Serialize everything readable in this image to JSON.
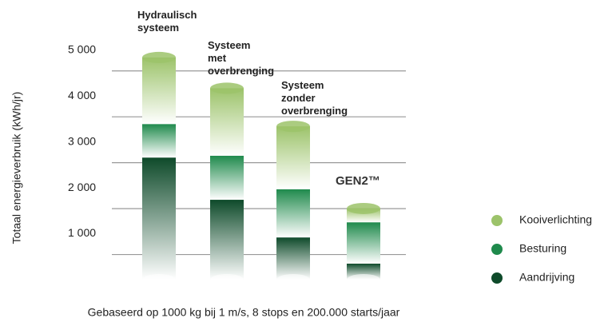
{
  "chart_data": {
    "type": "stacked_bar",
    "y_label": "Totaal energieverbruik (kWh/jr)",
    "caption": "Gebaseerd op 1000 kg bij 1 m/s, 8 stops en 200.000 starts/jaar",
    "categories": [
      "Hydraulisch systeem",
      "Systeem met overbrenging",
      "Systeem zonder overbrenging",
      "GEN2™"
    ],
    "series": [
      {
        "name": "Aandrijving",
        "color": "#0e4a2a",
        "values": [
          2660,
          1740,
          920,
          350
        ]
      },
      {
        "name": "Besturing",
        "color": "#1f8a4c",
        "values": [
          730,
          960,
          1050,
          900
        ]
      },
      {
        "name": "Kooiverlichting",
        "color": "#9cc36a",
        "values": [
          1450,
          1470,
          1370,
          300
        ]
      }
    ],
    "ylim": [
      0,
      5500
    ],
    "yticks": [
      {
        "value": 1000,
        "label": "1 000"
      },
      {
        "value": 2000,
        "label": "2 000"
      },
      {
        "value": 3000,
        "label": "3 000"
      },
      {
        "value": 4000,
        "label": "4 000"
      },
      {
        "value": 5000,
        "label": "5 000"
      }
    ],
    "grid": true,
    "legend": "right"
  }
}
